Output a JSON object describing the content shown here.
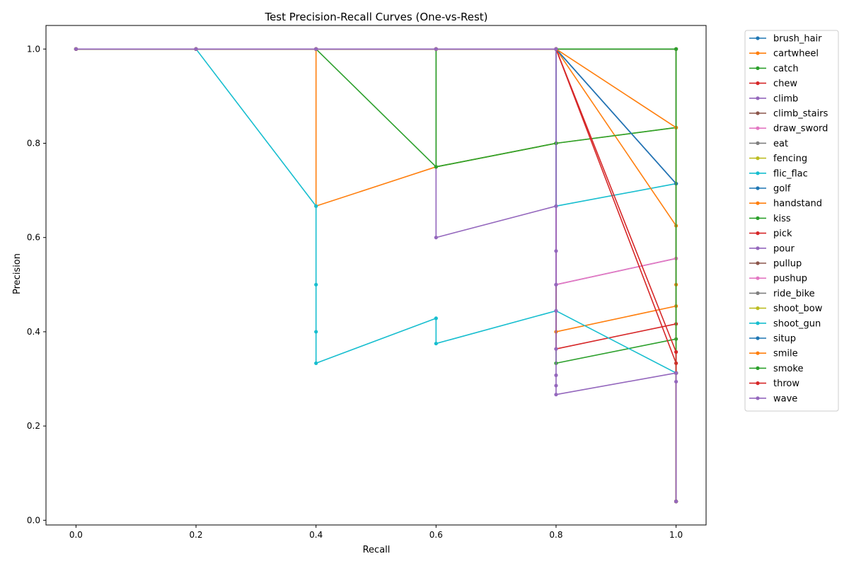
{
  "chart_data": {
    "type": "line",
    "title": "Test Precision-Recall Curves (One-vs-Rest)",
    "xlabel": "Recall",
    "ylabel": "Precision",
    "xlim": [
      -0.05,
      1.05
    ],
    "ylim": [
      -0.01,
      1.05
    ],
    "xticks": [
      0.0,
      0.2,
      0.4,
      0.6,
      0.8,
      1.0
    ],
    "xtick_labels": [
      "0.0",
      "0.2",
      "0.4",
      "0.6",
      "0.8",
      "1.0"
    ],
    "yticks": [
      0.0,
      0.2,
      0.4,
      0.6,
      0.8,
      1.0
    ],
    "ytick_labels": [
      "0.0",
      "0.2",
      "0.4",
      "0.6",
      "0.8",
      "1.0"
    ],
    "grid": false,
    "legend_position": "outside-right",
    "marker": "circle",
    "series": [
      {
        "name": "brush_hair",
        "color": "#1f77b4",
        "x": [
          1.0,
          1.0,
          1.0,
          0.8,
          0.6,
          0.4,
          0.2,
          0.0
        ],
        "y": [
          0.04,
          0.3125,
          0.7143,
          1.0,
          1.0,
          1.0,
          1.0,
          1.0
        ]
      },
      {
        "name": "cartwheel",
        "color": "#ff7f0e",
        "x": [
          1.0,
          1.0,
          1.0,
          0.8,
          0.8,
          0.6,
          0.4,
          0.4,
          0.2,
          0.0
        ],
        "y": [
          0.04,
          0.3125,
          0.4545,
          0.4,
          0.8,
          0.75,
          0.6667,
          1.0,
          1.0,
          1.0
        ]
      },
      {
        "name": "catch",
        "color": "#2ca02c",
        "x": [
          1.0,
          1.0,
          1.0,
          0.8,
          0.8,
          0.6,
          0.4,
          0.2,
          0.0
        ],
        "y": [
          0.04,
          0.3125,
          0.3846,
          0.3333,
          0.8,
          0.75,
          1.0,
          1.0,
          1.0
        ]
      },
      {
        "name": "chew",
        "color": "#d62728",
        "x": [
          1.0,
          1.0,
          1.0,
          0.8,
          0.8,
          0.6,
          0.4,
          0.2,
          0.0
        ],
        "y": [
          0.04,
          0.3125,
          0.4167,
          0.3636,
          1.0,
          1.0,
          1.0,
          1.0,
          1.0
        ]
      },
      {
        "name": "climb",
        "color": "#9467bd",
        "x": [
          1.0,
          1.0,
          1.0,
          0.8,
          0.8,
          0.6,
          0.6,
          0.4,
          0.2,
          0.0
        ],
        "y": [
          0.04,
          0.3125,
          0.5556,
          0.5,
          0.6667,
          0.6,
          1.0,
          1.0,
          1.0,
          1.0
        ]
      },
      {
        "name": "climb_stairs",
        "color": "#8c564b",
        "x": [
          1.0,
          1.0,
          1.0,
          0.8,
          0.6,
          0.4,
          0.2,
          0.0
        ],
        "y": [
          0.04,
          0.3125,
          1.0,
          1.0,
          1.0,
          1.0,
          1.0,
          1.0
        ]
      },
      {
        "name": "draw_sword",
        "color": "#e377c2",
        "x": [
          1.0,
          1.0,
          1.0,
          0.8,
          0.8,
          0.6,
          0.4,
          0.2,
          0.0
        ],
        "y": [
          0.04,
          0.3125,
          0.5556,
          0.5,
          1.0,
          1.0,
          1.0,
          1.0,
          1.0
        ]
      },
      {
        "name": "eat",
        "color": "#7f7f7f",
        "x": [
          1.0,
          1.0,
          1.0,
          0.8,
          0.6,
          0.4,
          0.2,
          0.0
        ],
        "y": [
          0.04,
          0.3125,
          1.0,
          1.0,
          1.0,
          1.0,
          1.0,
          1.0
        ]
      },
      {
        "name": "fencing",
        "color": "#bcbd22",
        "x": [
          1.0,
          1.0,
          1.0,
          0.8,
          0.6,
          0.6,
          0.4,
          0.2,
          0.0
        ],
        "y": [
          0.04,
          0.3125,
          0.8333,
          0.8,
          0.75,
          1.0,
          1.0,
          1.0,
          1.0
        ]
      },
      {
        "name": "flic_flac",
        "color": "#17becf",
        "x": [
          1.0,
          1.0,
          1.0,
          0.8,
          0.8,
          0.6,
          0.4,
          0.2,
          0.0
        ],
        "y": [
          0.04,
          0.3125,
          0.7143,
          0.6667,
          1.0,
          1.0,
          1.0,
          1.0,
          1.0
        ]
      },
      {
        "name": "golf",
        "color": "#1f77b4",
        "x": [
          1.0,
          1.0,
          1.0,
          0.8,
          0.6,
          0.4,
          0.2,
          0.0
        ],
        "y": [
          0.04,
          0.3125,
          1.0,
          1.0,
          1.0,
          1.0,
          1.0,
          1.0
        ]
      },
      {
        "name": "handstand",
        "color": "#ff7f0e",
        "x": [
          1.0,
          1.0,
          1.0,
          0.8,
          0.6,
          0.4,
          0.2,
          0.0
        ],
        "y": [
          0.04,
          0.3125,
          0.625,
          1.0,
          1.0,
          1.0,
          1.0,
          1.0
        ]
      },
      {
        "name": "kiss",
        "color": "#2ca02c",
        "x": [
          1.0,
          1.0,
          1.0,
          0.8,
          0.6,
          0.6,
          0.4,
          0.2,
          0.0
        ],
        "y": [
          0.04,
          0.3125,
          0.8333,
          0.8,
          0.75,
          1.0,
          1.0,
          1.0,
          1.0
        ]
      },
      {
        "name": "pick",
        "color": "#d62728",
        "x": [
          1.0,
          1.0,
          1.0,
          0.8,
          0.6,
          0.4,
          0.2,
          0.0
        ],
        "y": [
          0.04,
          0.3125,
          0.3333,
          1.0,
          1.0,
          1.0,
          1.0,
          1.0
        ]
      },
      {
        "name": "pour",
        "color": "#9467bd",
        "x": [
          1.0,
          1.0,
          1.0,
          0.8,
          0.6,
          0.4,
          0.2,
          0.0
        ],
        "y": [
          0.04,
          0.3125,
          0.7143,
          1.0,
          1.0,
          1.0,
          1.0,
          1.0
        ]
      },
      {
        "name": "pullup",
        "color": "#8c564b",
        "x": [
          1.0,
          1.0,
          1.0,
          0.8,
          0.6,
          0.4,
          0.2,
          0.0
        ],
        "y": [
          0.04,
          0.3125,
          1.0,
          1.0,
          1.0,
          1.0,
          1.0,
          1.0
        ]
      },
      {
        "name": "pushup",
        "color": "#e377c2",
        "x": [
          1.0,
          1.0,
          1.0,
          0.8,
          0.6,
          0.4,
          0.2,
          0.0
        ],
        "y": [
          0.04,
          0.3125,
          1.0,
          1.0,
          1.0,
          1.0,
          1.0,
          1.0
        ]
      },
      {
        "name": "ride_bike",
        "color": "#7f7f7f",
        "x": [
          1.0,
          1.0,
          1.0,
          0.8,
          0.6,
          0.4,
          0.2,
          0.0
        ],
        "y": [
          0.04,
          0.3125,
          1.0,
          1.0,
          1.0,
          1.0,
          1.0,
          1.0
        ]
      },
      {
        "name": "shoot_bow",
        "color": "#bcbd22",
        "x": [
          1.0,
          1.0,
          1.0,
          0.8,
          0.6,
          0.4,
          0.2,
          0.0
        ],
        "y": [
          0.04,
          0.3125,
          1.0,
          1.0,
          1.0,
          1.0,
          1.0,
          1.0
        ]
      },
      {
        "name": "shoot_gun",
        "color": "#17becf",
        "x": [
          1.0,
          1.0,
          0.8,
          0.6,
          0.6,
          0.4,
          0.4,
          0.4,
          0.4,
          0.2,
          0.0
        ],
        "y": [
          0.04,
          0.3125,
          0.4444,
          0.375,
          0.4286,
          0.3333,
          0.4,
          0.5,
          0.6667,
          1.0,
          1.0
        ]
      },
      {
        "name": "situp",
        "color": "#1f77b4",
        "x": [
          1.0,
          1.0,
          1.0,
          0.8,
          0.6,
          0.4,
          0.2,
          0.0
        ],
        "y": [
          0.04,
          0.3125,
          0.7143,
          1.0,
          1.0,
          1.0,
          1.0,
          1.0
        ]
      },
      {
        "name": "smile",
        "color": "#ff7f0e",
        "x": [
          1.0,
          1.0,
          1.0,
          1.0,
          0.8,
          0.6,
          0.4,
          0.2,
          0.0
        ],
        "y": [
          0.04,
          0.3125,
          0.5,
          0.8333,
          1.0,
          1.0,
          1.0,
          1.0,
          1.0
        ]
      },
      {
        "name": "smoke",
        "color": "#2ca02c",
        "x": [
          1.0,
          1.0,
          1.0,
          0.8,
          0.6,
          0.4,
          0.2,
          0.0
        ],
        "y": [
          0.04,
          0.3125,
          1.0,
          1.0,
          1.0,
          1.0,
          1.0,
          1.0
        ]
      },
      {
        "name": "throw",
        "color": "#d62728",
        "x": [
          1.0,
          1.0,
          1.0,
          0.8,
          0.6,
          0.4,
          0.2,
          0.0
        ],
        "y": [
          0.04,
          0.3125,
          0.3571,
          1.0,
          1.0,
          1.0,
          1.0,
          1.0
        ]
      },
      {
        "name": "wave",
        "color": "#9467bd",
        "x": [
          1.0,
          1.0,
          1.0,
          0.8,
          0.8,
          0.8,
          0.8,
          0.8,
          0.8,
          0.8,
          0.8,
          0.8,
          0.6,
          0.4,
          0.2,
          0.0
        ],
        "y": [
          0.04,
          0.2941,
          0.3125,
          0.2667,
          0.2857,
          0.3077,
          0.3636,
          0.4444,
          0.5,
          0.5714,
          0.6667,
          1.0,
          1.0,
          1.0,
          1.0,
          1.0
        ]
      }
    ]
  }
}
